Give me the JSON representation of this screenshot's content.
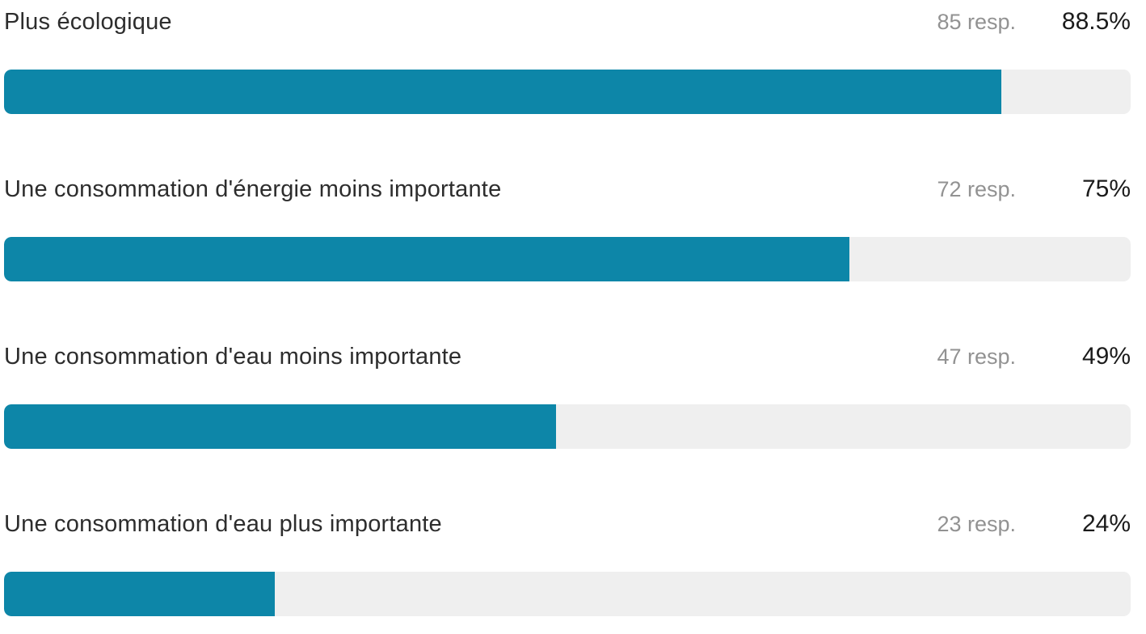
{
  "colors": {
    "bar_fill": "#0d86a8",
    "bar_track": "#efefef",
    "label_text": "#2d2d2d",
    "responses_text": "#929292",
    "percent_text": "#1b1b1b",
    "background": "#ffffff"
  },
  "rows": [
    {
      "label": "Plus écologique",
      "responses": "85 resp.",
      "percent": "88.5%",
      "value": 88.5
    },
    {
      "label": "Une consommation d'énergie moins importante",
      "responses": "72 resp.",
      "percent": "75%",
      "value": 75
    },
    {
      "label": "Une consommation d'eau moins importante",
      "responses": "47 resp.",
      "percent": "49%",
      "value": 49
    },
    {
      "label": "Une consommation d'eau plus importante",
      "responses": "23 resp.",
      "percent": "24%",
      "value": 24
    }
  ],
  "chart_data": {
    "type": "bar",
    "orientation": "horizontal",
    "categories": [
      "Plus écologique",
      "Une consommation d'énergie moins importante",
      "Une consommation d'eau moins importante",
      "Une consommation d'eau plus importante"
    ],
    "series": [
      {
        "name": "percent_of_respondents",
        "values": [
          88.5,
          75,
          49,
          24
        ]
      },
      {
        "name": "response_counts",
        "values": [
          85,
          72,
          47,
          23
        ]
      }
    ],
    "value_labels": [
      "88.5%",
      "75%",
      "49%",
      "24%"
    ],
    "count_labels": [
      "85 resp.",
      "72 resp.",
      "47 resp.",
      "23 resp."
    ],
    "title": "",
    "xlabel": "",
    "ylabel": "",
    "xlim": [
      0,
      100
    ],
    "grid": false,
    "legend": "none"
  }
}
